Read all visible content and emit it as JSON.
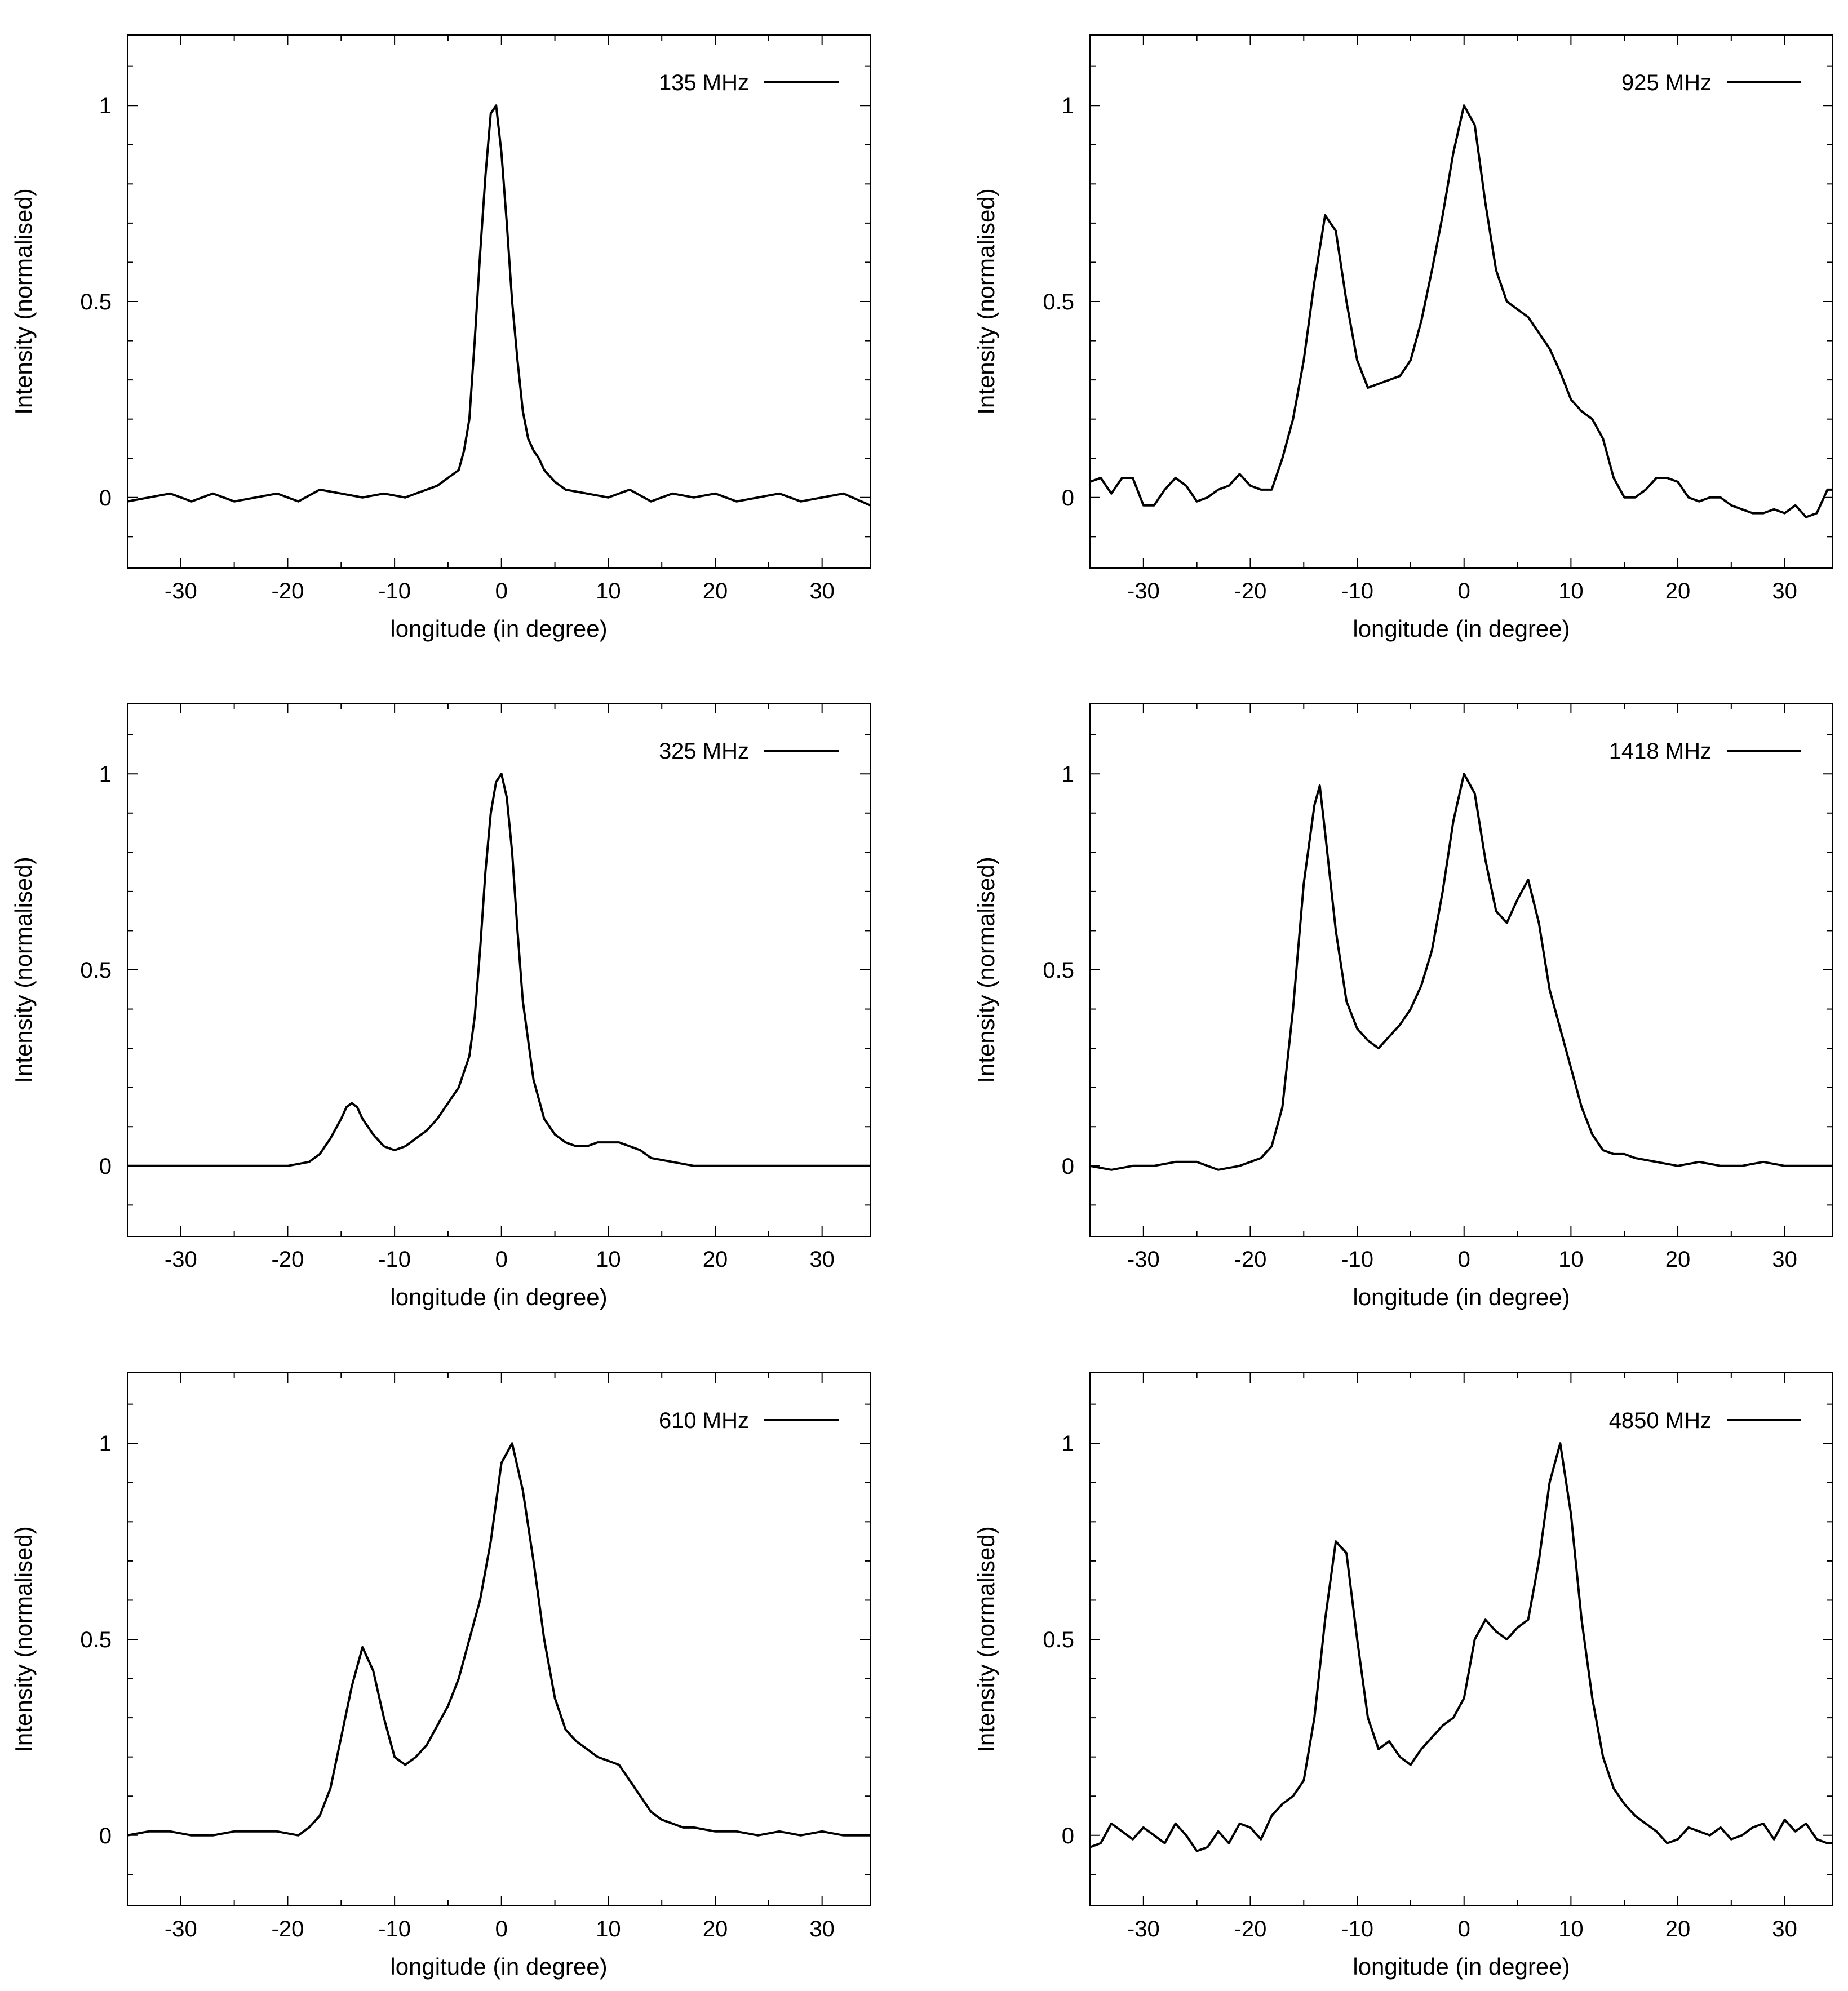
{
  "figure": {
    "layout": "3 rows x 2 columns",
    "line_color": "#000000",
    "background": "#ffffff"
  },
  "chart_data": [
    {
      "type": "line",
      "legend": "135 MHz",
      "legend_position": "top-right",
      "xlabel": "longitude (in degree)",
      "ylabel": "Intensity (normalised)",
      "xlim": [
        -35,
        34.5
      ],
      "ylim": [
        -0.18,
        1.18
      ],
      "xticks": [
        -30,
        -20,
        -10,
        0,
        10,
        20,
        30
      ],
      "yticks": [
        0,
        0.5,
        1
      ],
      "ytick_labels": [
        "0",
        "0.5",
        "1"
      ],
      "x": [
        -35,
        -33,
        -31,
        -29,
        -27,
        -25,
        -23,
        -21,
        -19,
        -17,
        -15,
        -13,
        -11,
        -9,
        -7,
        -6,
        -5,
        -4,
        -3.5,
        -3,
        -2.5,
        -2,
        -1.5,
        -1,
        -0.5,
        0,
        0.5,
        1,
        1.5,
        2,
        2.5,
        3,
        3.5,
        4,
        5,
        6,
        8,
        10,
        12,
        14,
        16,
        18,
        20,
        22,
        24,
        26,
        28,
        30,
        32,
        34.5
      ],
      "y": [
        -0.01,
        0.0,
        0.01,
        -0.01,
        0.01,
        -0.01,
        0.0,
        0.01,
        -0.01,
        0.02,
        0.01,
        0.0,
        0.01,
        0.0,
        0.02,
        0.03,
        0.05,
        0.07,
        0.12,
        0.2,
        0.4,
        0.62,
        0.82,
        0.98,
        1.0,
        0.88,
        0.7,
        0.5,
        0.35,
        0.22,
        0.15,
        0.12,
        0.1,
        0.07,
        0.04,
        0.02,
        0.01,
        0.0,
        0.02,
        -0.01,
        0.01,
        0.0,
        0.01,
        -0.01,
        0.0,
        0.01,
        -0.01,
        0.0,
        0.01,
        -0.02
      ]
    },
    {
      "type": "line",
      "legend": "925 MHz",
      "legend_position": "top-right",
      "xlabel": "longitude (in degree)",
      "ylabel": "Intensity (normalised)",
      "xlim": [
        -35,
        34.5
      ],
      "ylim": [
        -0.18,
        1.18
      ],
      "xticks": [
        -30,
        -20,
        -10,
        0,
        10,
        20,
        30
      ],
      "yticks": [
        0,
        0.5,
        1
      ],
      "ytick_labels": [
        "0",
        "0.5",
        "1"
      ],
      "x": [
        -35,
        -34,
        -33,
        -32,
        -31,
        -30,
        -29,
        -28,
        -27,
        -26,
        -25,
        -24,
        -23,
        -22,
        -21,
        -20,
        -19,
        -18,
        -17,
        -16,
        -15,
        -14,
        -13,
        -12,
        -11,
        -10,
        -9,
        -8,
        -7,
        -6,
        -5,
        -4,
        -3,
        -2,
        -1,
        0,
        1,
        2,
        3,
        4,
        5,
        6,
        7,
        8,
        9,
        10,
        11,
        12,
        13,
        14,
        15,
        16,
        17,
        18,
        19,
        20,
        21,
        22,
        23,
        24,
        25,
        26,
        27,
        28,
        29,
        30,
        31,
        32,
        33,
        34,
        34.5
      ],
      "y": [
        0.04,
        0.05,
        0.01,
        0.05,
        0.05,
        -0.02,
        -0.02,
        0.02,
        0.05,
        0.03,
        -0.01,
        0.0,
        0.02,
        0.03,
        0.06,
        0.03,
        0.02,
        0.02,
        0.1,
        0.2,
        0.35,
        0.55,
        0.72,
        0.68,
        0.5,
        0.35,
        0.28,
        0.29,
        0.3,
        0.31,
        0.35,
        0.45,
        0.58,
        0.72,
        0.88,
        1.0,
        0.95,
        0.75,
        0.58,
        0.5,
        0.48,
        0.46,
        0.42,
        0.38,
        0.32,
        0.25,
        0.22,
        0.2,
        0.15,
        0.05,
        0.0,
        0.0,
        0.02,
        0.05,
        0.05,
        0.04,
        0.0,
        -0.01,
        0.0,
        0.0,
        -0.02,
        -0.03,
        -0.04,
        -0.04,
        -0.03,
        -0.04,
        -0.02,
        -0.05,
        -0.04,
        0.02,
        0.02
      ]
    },
    {
      "type": "line",
      "legend": "325 MHz",
      "legend_position": "top-right",
      "xlabel": "longitude (in degree)",
      "ylabel": "Intensity (normalised)",
      "xlim": [
        -35,
        34.5
      ],
      "ylim": [
        -0.18,
        1.18
      ],
      "xticks": [
        -30,
        -20,
        -10,
        0,
        10,
        20,
        30
      ],
      "yticks": [
        0,
        0.5,
        1
      ],
      "ytick_labels": [
        "0",
        "0.5",
        "1"
      ],
      "x": [
        -35,
        -30,
        -25,
        -20,
        -18,
        -17,
        -16,
        -15,
        -14.5,
        -14,
        -13.5,
        -13,
        -12,
        -11,
        -10,
        -9,
        -8,
        -7,
        -6,
        -5,
        -4,
        -3,
        -2.5,
        -2,
        -1.5,
        -1,
        -0.5,
        0,
        0.5,
        1,
        1.5,
        2,
        3,
        4,
        5,
        6,
        7,
        8,
        9,
        10,
        11,
        12,
        13,
        14,
        16,
        18,
        20,
        25,
        30,
        34.5
      ],
      "y": [
        0.0,
        0.0,
        0.0,
        0.0,
        0.01,
        0.03,
        0.07,
        0.12,
        0.15,
        0.16,
        0.15,
        0.12,
        0.08,
        0.05,
        0.04,
        0.05,
        0.07,
        0.09,
        0.12,
        0.16,
        0.2,
        0.28,
        0.38,
        0.55,
        0.75,
        0.9,
        0.98,
        1.0,
        0.94,
        0.8,
        0.6,
        0.42,
        0.22,
        0.12,
        0.08,
        0.06,
        0.05,
        0.05,
        0.06,
        0.06,
        0.06,
        0.05,
        0.04,
        0.02,
        0.01,
        0.0,
        0.0,
        0.0,
        0.0,
        0.0
      ]
    },
    {
      "type": "line",
      "legend": "1418 MHz",
      "legend_position": "top-right",
      "xlabel": "longitude (in degree)",
      "ylabel": "Intensity (normalised)",
      "xlim": [
        -35,
        34.5
      ],
      "ylim": [
        -0.18,
        1.18
      ],
      "xticks": [
        -30,
        -20,
        -10,
        0,
        10,
        20,
        30
      ],
      "yticks": [
        0,
        0.5,
        1
      ],
      "ytick_labels": [
        "0",
        "0.5",
        "1"
      ],
      "x": [
        -35,
        -33,
        -31,
        -29,
        -27,
        -25,
        -23,
        -21,
        -19,
        -18,
        -17,
        -16,
        -15,
        -14,
        -13.5,
        -13,
        -12,
        -11,
        -10,
        -9,
        -8,
        -7,
        -6,
        -5,
        -4,
        -3,
        -2,
        -1,
        0,
        1,
        2,
        3,
        4,
        5,
        6,
        7,
        8,
        9,
        10,
        11,
        12,
        13,
        14,
        15,
        16,
        18,
        20,
        22,
        24,
        26,
        28,
        30,
        32,
        34.5
      ],
      "y": [
        0.0,
        -0.01,
        0.0,
        0.0,
        0.01,
        0.01,
        -0.01,
        0.0,
        0.02,
        0.05,
        0.15,
        0.4,
        0.72,
        0.92,
        0.97,
        0.85,
        0.6,
        0.42,
        0.35,
        0.32,
        0.3,
        0.33,
        0.36,
        0.4,
        0.46,
        0.55,
        0.7,
        0.88,
        1.0,
        0.95,
        0.78,
        0.65,
        0.62,
        0.68,
        0.73,
        0.62,
        0.45,
        0.35,
        0.25,
        0.15,
        0.08,
        0.04,
        0.03,
        0.03,
        0.02,
        0.01,
        0.0,
        0.01,
        0.0,
        0.0,
        0.01,
        0.0,
        0.0,
        0.0
      ]
    },
    {
      "type": "line",
      "legend": "610 MHz",
      "legend_position": "top-right",
      "xlabel": "longitude (in degree)",
      "ylabel": "Intensity (normalised)",
      "xlim": [
        -35,
        34.5
      ],
      "ylim": [
        -0.18,
        1.18
      ],
      "xticks": [
        -30,
        -20,
        -10,
        0,
        10,
        20,
        30
      ],
      "yticks": [
        0,
        0.5,
        1
      ],
      "ytick_labels": [
        "0",
        "0.5",
        "1"
      ],
      "x": [
        -35,
        -33,
        -31,
        -29,
        -27,
        -25,
        -23,
        -21,
        -19,
        -18,
        -17,
        -16,
        -15,
        -14,
        -13,
        -12,
        -11,
        -10,
        -9,
        -8,
        -7,
        -6,
        -5,
        -4,
        -3,
        -2,
        -1,
        0,
        1,
        2,
        3,
        4,
        5,
        6,
        7,
        8,
        9,
        10,
        11,
        12,
        13,
        14,
        15,
        16,
        17,
        18,
        20,
        22,
        24,
        26,
        28,
        30,
        32,
        34.5
      ],
      "y": [
        0.0,
        0.01,
        0.01,
        0.0,
        0.0,
        0.01,
        0.01,
        0.01,
        0.0,
        0.02,
        0.05,
        0.12,
        0.25,
        0.38,
        0.48,
        0.42,
        0.3,
        0.2,
        0.18,
        0.2,
        0.23,
        0.28,
        0.33,
        0.4,
        0.5,
        0.6,
        0.75,
        0.95,
        1.0,
        0.88,
        0.7,
        0.5,
        0.35,
        0.27,
        0.24,
        0.22,
        0.2,
        0.19,
        0.18,
        0.14,
        0.1,
        0.06,
        0.04,
        0.03,
        0.02,
        0.02,
        0.01,
        0.01,
        0.0,
        0.01,
        0.0,
        0.01,
        0.0,
        0.0
      ]
    },
    {
      "type": "line",
      "legend": "4850 MHz",
      "legend_position": "top-right",
      "xlabel": "longitude (in degree)",
      "ylabel": "Intensity (normalised)",
      "xlim": [
        -35,
        34.5
      ],
      "ylim": [
        -0.18,
        1.18
      ],
      "xticks": [
        -30,
        -20,
        -10,
        0,
        10,
        20,
        30
      ],
      "yticks": [
        0,
        0.5,
        1
      ],
      "ytick_labels": [
        "0",
        "0.5",
        "1"
      ],
      "x": [
        -35,
        -34,
        -33,
        -32,
        -31,
        -30,
        -29,
        -28,
        -27,
        -26,
        -25,
        -24,
        -23,
        -22,
        -21,
        -20,
        -19,
        -18,
        -17,
        -16,
        -15,
        -14,
        -13,
        -12,
        -11,
        -10,
        -9,
        -8,
        -7,
        -6,
        -5,
        -4,
        -3,
        -2,
        -1,
        0,
        1,
        2,
        3,
        4,
        5,
        6,
        7,
        8,
        9,
        10,
        11,
        12,
        13,
        14,
        15,
        16,
        17,
        18,
        19,
        20,
        21,
        22,
        23,
        24,
        25,
        26,
        27,
        28,
        29,
        30,
        31,
        32,
        33,
        34,
        34.5
      ],
      "y": [
        -0.03,
        -0.02,
        0.03,
        0.01,
        -0.01,
        0.02,
        0.0,
        -0.02,
        0.03,
        0.0,
        -0.04,
        -0.03,
        0.01,
        -0.02,
        0.03,
        0.02,
        -0.01,
        0.05,
        0.08,
        0.1,
        0.14,
        0.3,
        0.55,
        0.75,
        0.72,
        0.5,
        0.3,
        0.22,
        0.24,
        0.2,
        0.18,
        0.22,
        0.25,
        0.28,
        0.3,
        0.35,
        0.5,
        0.55,
        0.52,
        0.5,
        0.53,
        0.55,
        0.7,
        0.9,
        1.0,
        0.82,
        0.55,
        0.35,
        0.2,
        0.12,
        0.08,
        0.05,
        0.03,
        0.01,
        -0.02,
        -0.01,
        0.02,
        0.01,
        0.0,
        0.02,
        -0.01,
        0.0,
        0.02,
        0.03,
        -0.01,
        0.04,
        0.01,
        0.03,
        -0.01,
        -0.02,
        -0.02
      ]
    }
  ]
}
